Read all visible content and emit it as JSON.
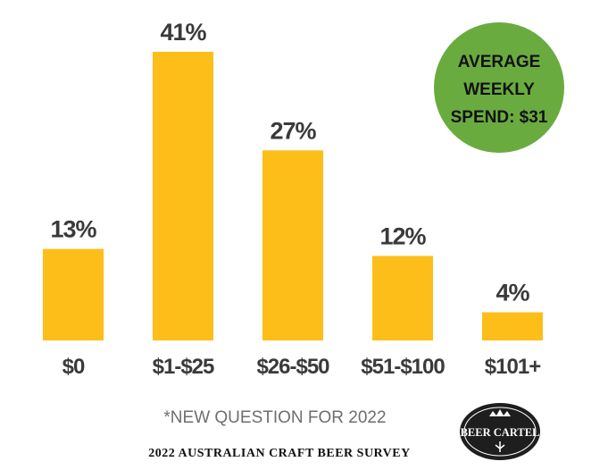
{
  "chart_data": {
    "type": "bar",
    "categories": [
      "$0",
      "$1-$25",
      "$26-$50",
      "$51-$100",
      "$101+"
    ],
    "values": [
      13,
      41,
      27,
      12,
      4
    ],
    "value_labels": [
      "13%",
      "41%",
      "27%",
      "12%",
      "4%"
    ],
    "ylim": [
      0,
      41
    ],
    "bar_color": "#FDBE1A",
    "grid": false
  },
  "callout": {
    "lines": [
      "AVERAGE",
      "WEEKLY",
      "SPEND: $31"
    ],
    "color": "#6AAB40"
  },
  "note": "*NEW QUESTION FOR 2022",
  "survey_title": "2022 AUSTRALIAN CRAFT BEER SURVEY",
  "logo": {
    "text": "BEER CARTEL",
    "color": "#1e1e1e"
  }
}
